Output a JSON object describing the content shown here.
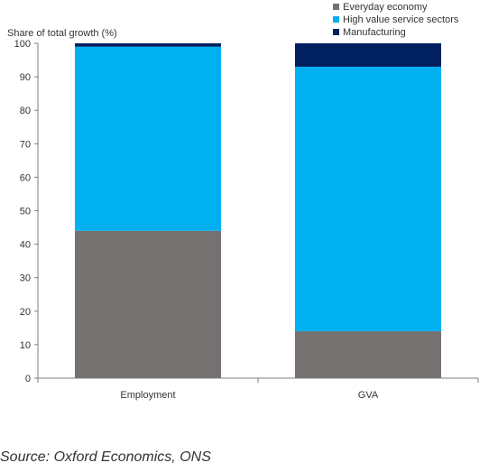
{
  "chart_data": {
    "type": "bar",
    "stacked": true,
    "categories": [
      "Employment",
      "GVA"
    ],
    "series": [
      {
        "name": "Everyday economy",
        "color": "#767171",
        "values": [
          44,
          14
        ]
      },
      {
        "name": "High value service sectors",
        "color": "#00B0F0",
        "values": [
          55,
          79
        ]
      },
      {
        "name": "Manufacturing",
        "color": "#002060",
        "values": [
          1,
          7
        ]
      }
    ],
    "ylabel": "Share of total growth (%)",
    "ylim": [
      0,
      100
    ],
    "yticks": [
      0,
      10,
      20,
      30,
      40,
      50,
      60,
      70,
      80,
      90,
      100
    ],
    "grid": false,
    "legend": {
      "placement": "top-right",
      "order": [
        "Everyday economy",
        "High value service sectors",
        "Manufacturing"
      ]
    }
  },
  "source_text": "Source: Oxford Economics, ONS"
}
